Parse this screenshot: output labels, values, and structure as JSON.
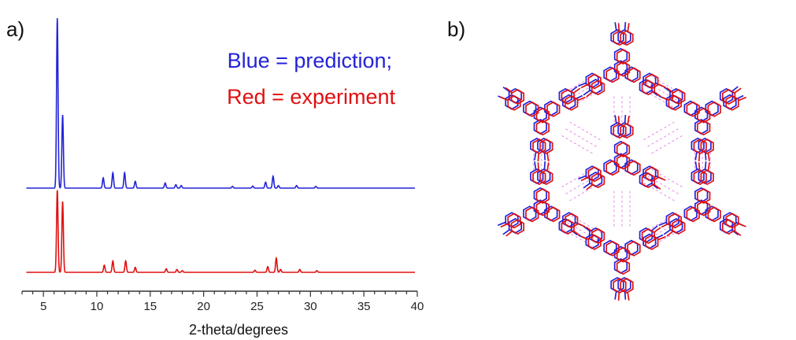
{
  "panels": {
    "a_label": "a)",
    "b_label": "b)"
  },
  "legend": {
    "line1": "Blue = prediction;",
    "line2": "Red = experiment"
  },
  "colors": {
    "prediction": "#2323d8",
    "experiment": "#e01010",
    "hbond": "#e48ce4",
    "axis": "#333333"
  },
  "chart_data": {
    "type": "line",
    "xlabel": "2-theta/degrees",
    "ylabel": "",
    "xlim": [
      3,
      40
    ],
    "xticks": [
      5,
      10,
      15,
      20,
      25,
      30,
      35,
      40
    ],
    "series": [
      {
        "name": "Blue = prediction",
        "color": "#2323d8",
        "peaks": [
          {
            "x": 6.3,
            "h": 1.0
          },
          {
            "x": 6.8,
            "h": 0.43
          },
          {
            "x": 10.6,
            "h": 0.06
          },
          {
            "x": 11.5,
            "h": 0.09
          },
          {
            "x": 12.6,
            "h": 0.09
          },
          {
            "x": 13.6,
            "h": 0.04
          },
          {
            "x": 16.4,
            "h": 0.03
          },
          {
            "x": 17.4,
            "h": 0.02
          },
          {
            "x": 17.9,
            "h": 0.015
          },
          {
            "x": 22.7,
            "h": 0.01
          },
          {
            "x": 24.6,
            "h": 0.012
          },
          {
            "x": 25.8,
            "h": 0.035
          },
          {
            "x": 26.5,
            "h": 0.07
          },
          {
            "x": 27.0,
            "h": 0.015
          },
          {
            "x": 28.7,
            "h": 0.015
          },
          {
            "x": 30.5,
            "h": 0.01
          }
        ]
      },
      {
        "name": "Red = experiment",
        "color": "#e01010",
        "peaks": [
          {
            "x": 6.3,
            "h": 0.58
          },
          {
            "x": 6.8,
            "h": 0.5
          },
          {
            "x": 10.7,
            "h": 0.05
          },
          {
            "x": 11.5,
            "h": 0.08
          },
          {
            "x": 12.7,
            "h": 0.08
          },
          {
            "x": 13.6,
            "h": 0.035
          },
          {
            "x": 16.5,
            "h": 0.025
          },
          {
            "x": 17.5,
            "h": 0.02
          },
          {
            "x": 18.0,
            "h": 0.012
          },
          {
            "x": 24.8,
            "h": 0.015
          },
          {
            "x": 26.0,
            "h": 0.04
          },
          {
            "x": 26.8,
            "h": 0.1
          },
          {
            "x": 27.2,
            "h": 0.02
          },
          {
            "x": 29.0,
            "h": 0.02
          },
          {
            "x": 30.6,
            "h": 0.012
          }
        ]
      }
    ]
  }
}
